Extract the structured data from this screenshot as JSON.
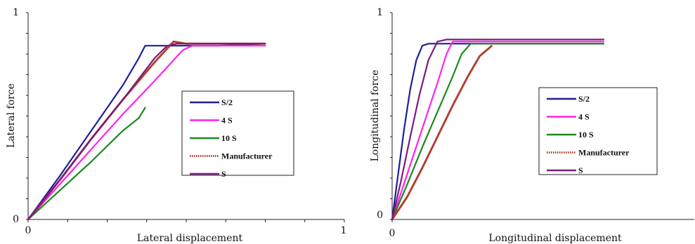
{
  "chart_data": [
    {
      "type": "line",
      "title": "",
      "xlabel": "Lateral displacement",
      "ylabel": "Lateral force",
      "xlim": [
        0,
        1
      ],
      "ylim": [
        0,
        1
      ],
      "x_ticks": [
        "0",
        "1"
      ],
      "y_ticks": [
        "0",
        "1"
      ],
      "grid": false,
      "legend_position": "right",
      "series": [
        {
          "name": "S/2",
          "color": "#1f1f9a",
          "style": "solid",
          "x": [
            0,
            0.1,
            0.2,
            0.3,
            0.35,
            0.37,
            0.4,
            0.6,
            0.75
          ],
          "y": [
            0,
            0.21,
            0.43,
            0.65,
            0.78,
            0.84,
            0.84,
            0.84,
            0.85
          ]
        },
        {
          "name": "4 S",
          "color": "#ff22ee",
          "style": "solid",
          "x": [
            0,
            0.1,
            0.2,
            0.3,
            0.4,
            0.49,
            0.52,
            0.75
          ],
          "y": [
            0,
            0.17,
            0.34,
            0.51,
            0.67,
            0.82,
            0.84,
            0.84
          ]
        },
        {
          "name": "10 S",
          "color": "#1a8a1a",
          "style": "solid",
          "x": [
            0,
            0.1,
            0.2,
            0.3,
            0.35,
            0.37
          ],
          "y": [
            0,
            0.14,
            0.28,
            0.43,
            0.49,
            0.54
          ]
        },
        {
          "name": "Manufacturer",
          "color": "#b04030",
          "style": "dotted",
          "x": [
            0,
            0.1,
            0.2,
            0.3,
            0.4,
            0.46,
            0.5,
            0.75
          ],
          "y": [
            0,
            0.19,
            0.39,
            0.58,
            0.76,
            0.86,
            0.85,
            0.85
          ]
        },
        {
          "name": "S",
          "color": "#7d1a7d",
          "style": "solid",
          "x": [
            0,
            0.1,
            0.2,
            0.3,
            0.4,
            0.44,
            0.47,
            0.75
          ],
          "y": [
            0,
            0.19,
            0.39,
            0.58,
            0.78,
            0.84,
            0.85,
            0.85
          ]
        }
      ]
    },
    {
      "type": "line",
      "title": "",
      "xlabel": "Longitudinal displacement",
      "ylabel": "Longitudinal force",
      "xlim": [
        0,
        1
      ],
      "ylim": [
        0,
        1
      ],
      "x_ticks": [
        "0"
      ],
      "y_ticks": [
        "0",
        "1"
      ],
      "grid": false,
      "legend_position": "right",
      "series": [
        {
          "name": "S/2",
          "color": "#1f1f9a",
          "style": "solid",
          "x": [
            0,
            0.02,
            0.04,
            0.06,
            0.08,
            0.1,
            0.12,
            0.7
          ],
          "y": [
            0,
            0.22,
            0.44,
            0.63,
            0.77,
            0.84,
            0.85,
            0.85
          ]
        },
        {
          "name": "4 S",
          "color": "#ff22ee",
          "style": "solid",
          "x": [
            0,
            0.05,
            0.1,
            0.15,
            0.18,
            0.2,
            0.7
          ],
          "y": [
            0,
            0.22,
            0.44,
            0.66,
            0.8,
            0.86,
            0.86
          ]
        },
        {
          "name": "10 S",
          "color": "#1a8a1a",
          "style": "solid",
          "x": [
            0,
            0.05,
            0.1,
            0.15,
            0.2,
            0.23,
            0.26,
            0.7
          ],
          "y": [
            0,
            0.17,
            0.35,
            0.52,
            0.69,
            0.8,
            0.85,
            0.85
          ]
        },
        {
          "name": "Manufacturer",
          "color": "#b04030",
          "style": "dotted",
          "x": [
            0,
            0.05,
            0.1,
            0.15,
            0.2,
            0.25,
            0.29,
            0.33
          ],
          "y": [
            0,
            0.11,
            0.25,
            0.4,
            0.55,
            0.69,
            0.79,
            0.84
          ]
        },
        {
          "name": "S",
          "color": "#7d1a7d",
          "style": "solid",
          "x": [
            0,
            0.03,
            0.06,
            0.09,
            0.12,
            0.15,
            0.18,
            0.7
          ],
          "y": [
            0,
            0.19,
            0.4,
            0.6,
            0.77,
            0.86,
            0.87,
            0.87
          ]
        }
      ]
    }
  ]
}
